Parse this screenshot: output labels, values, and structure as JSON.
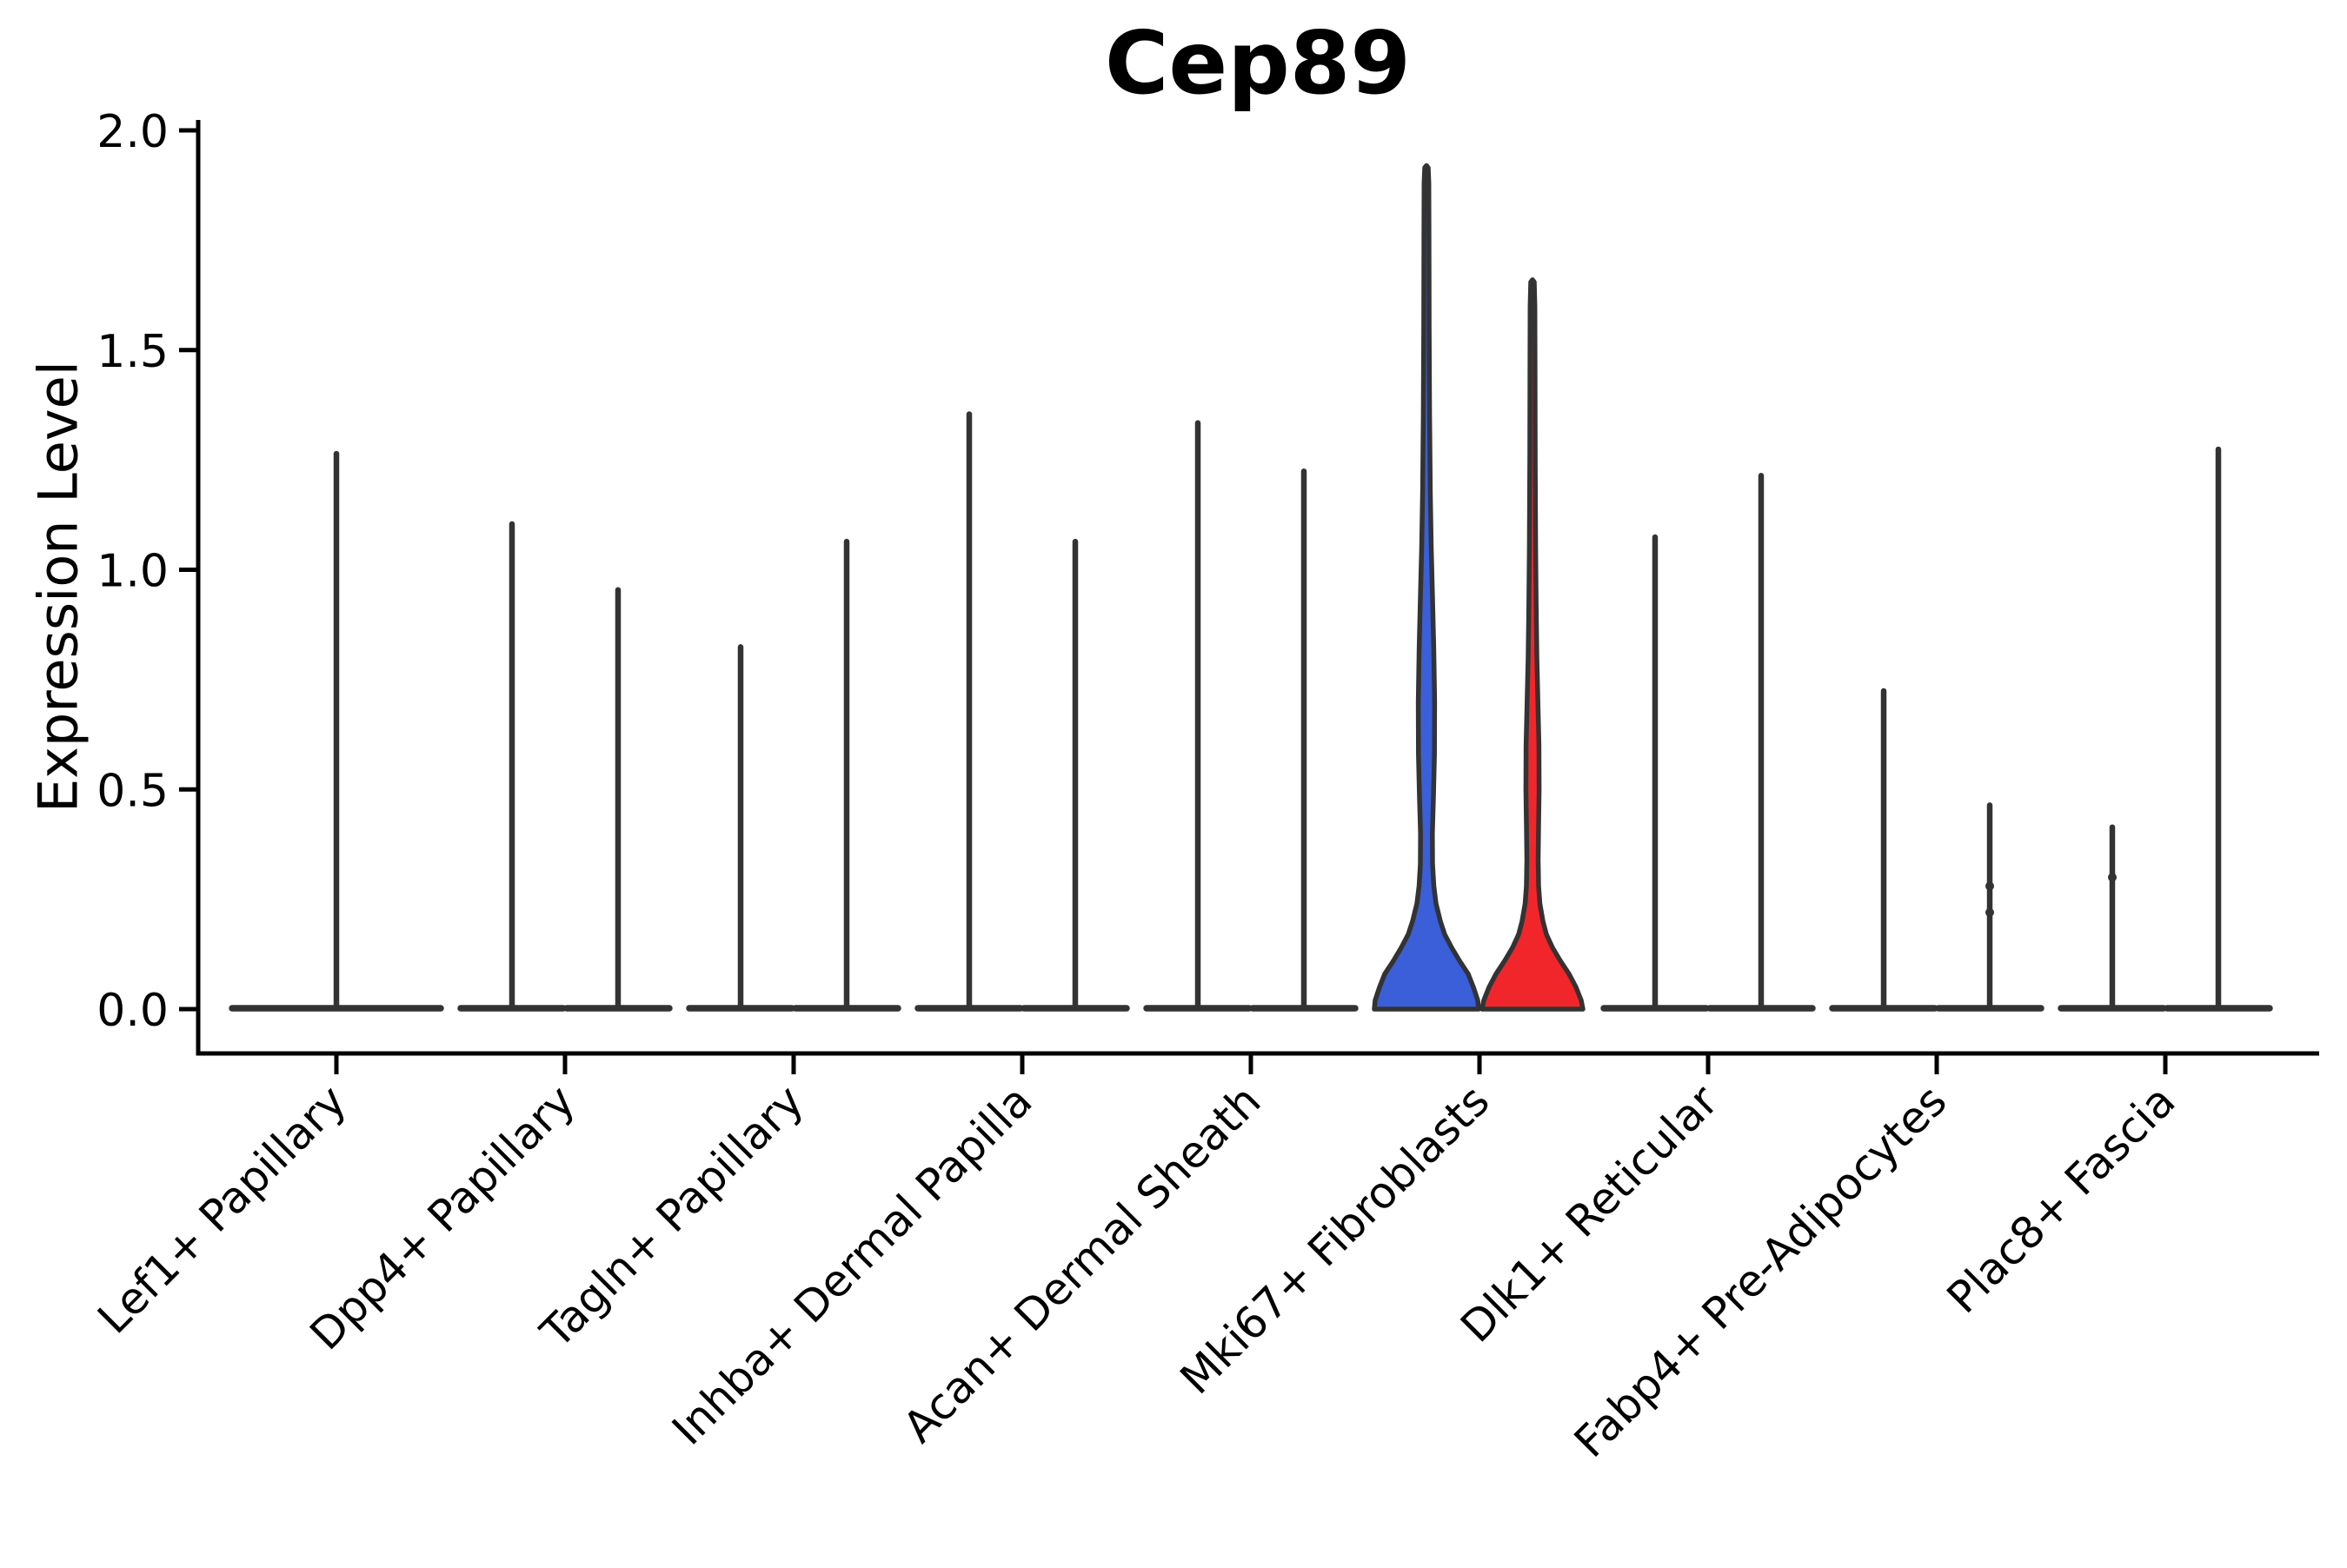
{
  "chart_data": {
    "type": "violin",
    "title": "Cep89",
    "ylabel": "Expression Level",
    "xlabel": "",
    "ytick_labels": [
      "0.0",
      "0.5",
      "1.0",
      "1.5",
      "2.0"
    ],
    "ytick_values": [
      0.0,
      0.5,
      1.0,
      1.5,
      2.0
    ],
    "ylim": [
      -0.1,
      2.02
    ],
    "grid": false,
    "legend_position": "none",
    "colors": {
      "violin_fill_group1": "#3A5FD8",
      "violin_fill_group2": "#F1262B",
      "violin_outline": "#333333",
      "axis": "#000000",
      "background": "#ffffff"
    },
    "categories": [
      "Lef1+ Papillary",
      "Dpp4+ Papillary",
      "Tagln+ Papillary",
      "Inhba+ Dermal Papilla",
      "Acan+ Dermal Sheath",
      "Mki67+ Fibroblasts",
      "Dlk1+ Reticular",
      "Fabp4+ Pre-Adipocytes",
      "Plac8+ Fascia"
    ],
    "violins": [
      {
        "category": "Lef1+ Papillary",
        "group": "all",
        "max_expression": 1.27,
        "body": "flat"
      },
      {
        "category": "Dpp4+ Papillary",
        "group": "left",
        "max_expression": 1.11,
        "body": "flat"
      },
      {
        "category": "Dpp4+ Papillary",
        "group": "right",
        "max_expression": 0.96,
        "body": "flat"
      },
      {
        "category": "Tagln+ Papillary",
        "group": "left",
        "max_expression": 0.83,
        "body": "flat"
      },
      {
        "category": "Tagln+ Papillary",
        "group": "right",
        "max_expression": 1.07,
        "body": "flat"
      },
      {
        "category": "Inhba+ Dermal Papilla",
        "group": "left",
        "max_expression": 1.36,
        "body": "flat"
      },
      {
        "category": "Inhba+ Dermal Papilla",
        "group": "right",
        "max_expression": 1.07,
        "body": "flat"
      },
      {
        "category": "Acan+ Dermal Sheath",
        "group": "left",
        "max_expression": 1.34,
        "body": "flat"
      },
      {
        "category": "Acan+ Dermal Sheath",
        "group": "right",
        "max_expression": 1.23,
        "body": "flat"
      },
      {
        "category": "Mki67+ Fibroblasts",
        "group": "left",
        "max_expression": 1.92,
        "body": "density",
        "fill": "#3A5FD8",
        "profile": [
          [
            0,
            60
          ],
          [
            0.02,
            59
          ],
          [
            0.05,
            54
          ],
          [
            0.08,
            48
          ],
          [
            0.11,
            38
          ],
          [
            0.14,
            29
          ],
          [
            0.17,
            21
          ],
          [
            0.2,
            16
          ],
          [
            0.24,
            11
          ],
          [
            0.28,
            8.5
          ],
          [
            0.33,
            7
          ],
          [
            0.4,
            6.8
          ],
          [
            0.48,
            8
          ],
          [
            0.58,
            9.2
          ],
          [
            0.7,
            9.4
          ],
          [
            0.82,
            8.4
          ],
          [
            0.95,
            6.8
          ],
          [
            1.05,
            5.5
          ],
          [
            1.18,
            4.4
          ],
          [
            1.35,
            3.6
          ],
          [
            1.55,
            3.1
          ],
          [
            1.75,
            2.9
          ],
          [
            1.88,
            2.7
          ],
          [
            1.915,
            2
          ],
          [
            1.92,
            0
          ]
        ]
      },
      {
        "category": "Mki67+ Fibroblasts",
        "group": "right",
        "max_expression": 1.66,
        "body": "density",
        "fill": "#F1262B",
        "profile": [
          [
            0,
            58
          ],
          [
            0.02,
            56
          ],
          [
            0.05,
            50
          ],
          [
            0.08,
            42
          ],
          [
            0.11,
            32
          ],
          [
            0.14,
            23
          ],
          [
            0.17,
            16
          ],
          [
            0.2,
            12
          ],
          [
            0.24,
            8.5
          ],
          [
            0.28,
            7
          ],
          [
            0.34,
            6.5
          ],
          [
            0.42,
            7
          ],
          [
            0.5,
            7.6
          ],
          [
            0.6,
            7.4
          ],
          [
            0.7,
            6.2
          ],
          [
            0.8,
            5
          ],
          [
            0.92,
            4.2
          ],
          [
            1.05,
            3.6
          ],
          [
            1.25,
            3.1
          ],
          [
            1.45,
            2.9
          ],
          [
            1.6,
            2.7
          ],
          [
            1.655,
            2
          ],
          [
            1.66,
            0
          ]
        ]
      },
      {
        "category": "Dlk1+ Reticular",
        "group": "left",
        "max_expression": 1.08,
        "body": "flat"
      },
      {
        "category": "Dlk1+ Reticular",
        "group": "right",
        "max_expression": 1.22,
        "body": "flat"
      },
      {
        "category": "Fabp4+ Pre-Adipocytes",
        "group": "left",
        "max_expression": 0.73,
        "body": "flat"
      },
      {
        "category": "Fabp4+ Pre-Adipocytes",
        "group": "right",
        "max_expression": 0.47,
        "body": "flat",
        "dots": [
          0.28,
          0.22
        ]
      },
      {
        "category": "Plac8+ Fascia",
        "group": "left",
        "max_expression": 0.42,
        "body": "flat",
        "dots": [
          0.3
        ]
      },
      {
        "category": "Plac8+ Fascia",
        "group": "right",
        "max_expression": 1.28,
        "body": "flat"
      }
    ]
  }
}
